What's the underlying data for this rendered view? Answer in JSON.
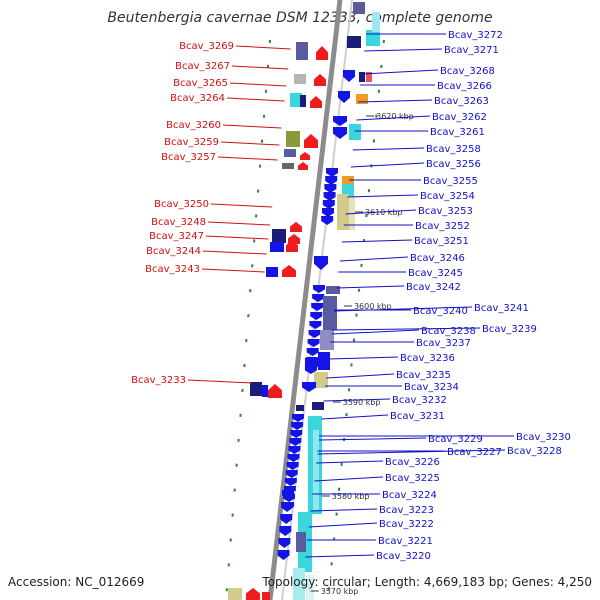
{
  "title": "Beutenbergia cavernae DSM 12333, complete genome",
  "footer": {
    "accession": "Accession: NC_012669",
    "summary": "Topology: circular; Length: 4,669,183 bp; Genes: 4,250"
  },
  "colors": {
    "backbone": "#8c8c8c",
    "left_label": "#d01010",
    "right_label": "#1010c8",
    "tick": "#2a8a2a",
    "gene_blue": "#1414e6",
    "gene_red": "#ee1c1c",
    "gene_navy": "#1c1c7a",
    "gene_cyan": "#3ad6dc",
    "gene_khaki": "#d2cc8c",
    "gene_olive": "#8a9a3a",
    "gene_orange": "#f09a20",
    "gene_gray": "#b4b4b4",
    "gene_purple": "#5a5aa0"
  },
  "kbp_marks": [
    "3620 kbp",
    "3610 kbp",
    "3600 kbp",
    "3590 kbp",
    "3580 kbp",
    "3570 kbp"
  ],
  "left_genes": [
    "Bcav_3269",
    "Bcav_3267",
    "Bcav_3265",
    "Bcav_3264",
    "Bcav_3260",
    "Bcav_3259",
    "Bcav_3257",
    "Bcav_3250",
    "Bcav_3248",
    "Bcav_3247",
    "Bcav_3244",
    "Bcav_3243",
    "Bcav_3233"
  ],
  "right_genes": [
    "Bcav_3272",
    "Bcav_3271",
    "Bcav_3268",
    "Bcav_3266",
    "Bcav_3263",
    "Bcav_3262",
    "Bcav_3261",
    "Bcav_3258",
    "Bcav_3256",
    "Bcav_3255",
    "Bcav_3254",
    "Bcav_3253",
    "Bcav_3252",
    "Bcav_3251",
    "Bcav_3246",
    "Bcav_3245",
    "Bcav_3242",
    "Bcav_3241",
    "Bcav_3240",
    "Bcav_3239",
    "Bcav_3238",
    "Bcav_3237",
    "Bcav_3236",
    "Bcav_3235",
    "Bcav_3234",
    "Bcav_3232",
    "Bcav_3231",
    "Bcav_3230",
    "Bcav_3229",
    "Bcav_3228",
    "Bcav_3227",
    "Bcav_3226",
    "Bcav_3225",
    "Bcav_3224",
    "Bcav_3223",
    "Bcav_3222",
    "Bcav_3221",
    "Bcav_3220"
  ]
}
